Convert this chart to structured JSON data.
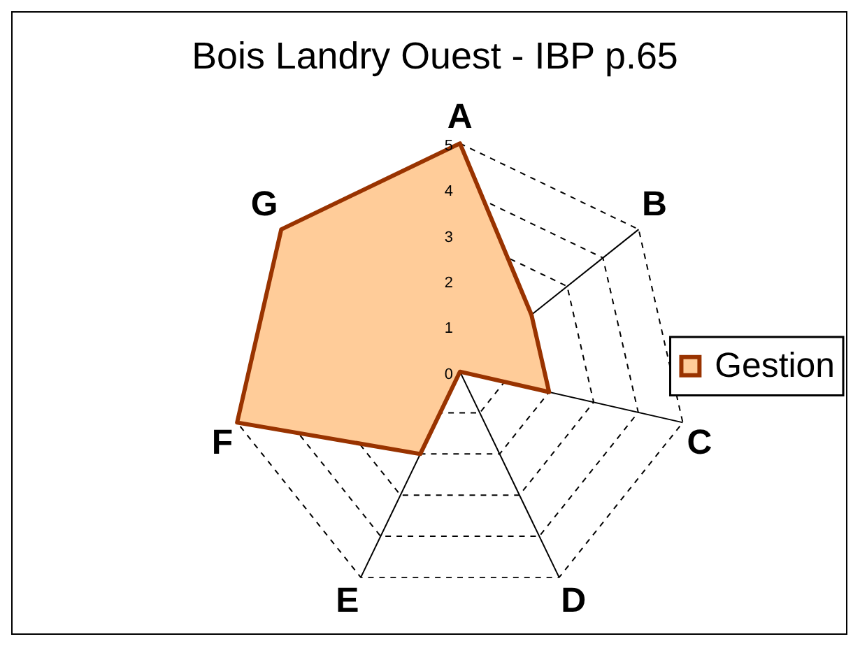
{
  "chart_data": {
    "type": "radar",
    "title": "Bois Landry Ouest - IBP p.65",
    "categories": [
      "A",
      "B",
      "C",
      "D",
      "E",
      "F",
      "G"
    ],
    "series": [
      {
        "name": "Gestion",
        "color": "#ffcc99",
        "values": [
          5,
          2,
          2,
          0,
          2,
          5,
          5
        ]
      }
    ],
    "ylim": [
      0,
      5
    ],
    "yticks": [
      0,
      1,
      2,
      3,
      4,
      5
    ],
    "grid": true,
    "legend": "right",
    "marker": "none",
    "line_style": "solid"
  }
}
